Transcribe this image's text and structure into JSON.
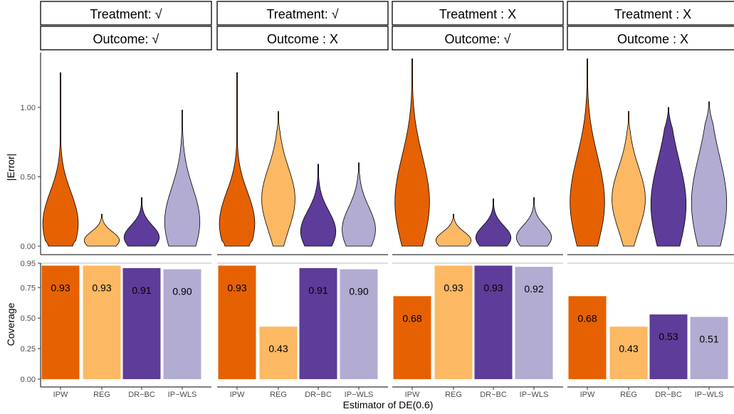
{
  "chart_data": {
    "type": "violin+bar",
    "xlabel": "Estimator of DE(0.6)",
    "categories": [
      "IPW",
      "REG",
      "DR−BC",
      "IP−WLS"
    ],
    "colors": [
      "#e66101",
      "#fdb863",
      "#5e3c99",
      "#b2abd2"
    ],
    "panels": [
      {
        "treatment": "Treatment: √",
        "outcome": "Outcome: √",
        "coverage": [
          0.93,
          0.93,
          0.91,
          0.9
        ],
        "coverage_labels": [
          "0.93",
          "0.93",
          "0.91",
          "0.90"
        ],
        "error_max": [
          1.25,
          0.23,
          0.35,
          0.98
        ]
      },
      {
        "treatment": "Treatment: √",
        "outcome": "Outcome : X",
        "coverage": [
          0.93,
          0.43,
          0.91,
          0.9
        ],
        "coverage_labels": [
          "0.93",
          "0.43",
          "0.91",
          "0.90"
        ],
        "error_max": [
          1.25,
          0.97,
          0.59,
          0.6
        ]
      },
      {
        "treatment": "Treatment : X",
        "outcome": "Outcome: √",
        "coverage": [
          0.68,
          0.93,
          0.93,
          0.92
        ],
        "coverage_labels": [
          "0.68",
          "0.93",
          "0.93",
          "0.92"
        ],
        "error_max": [
          1.35,
          0.23,
          0.34,
          0.35
        ]
      },
      {
        "treatment": "Treatment : X",
        "outcome": "Outcome : X",
        "coverage": [
          0.68,
          0.43,
          0.53,
          0.51
        ],
        "coverage_labels": [
          "0.68",
          "0.43",
          "0.53",
          "0.51"
        ],
        "error_max": [
          1.35,
          0.97,
          1.0,
          1.04
        ]
      }
    ],
    "top": {
      "ylabel": "|Error|",
      "yticks": [
        "0.00",
        "0.50",
        "1.00"
      ],
      "ylim": [
        0,
        1.4
      ]
    },
    "bottom": {
      "ylabel": "Coverage",
      "yticks": [
        "0.00",
        "0.25",
        "0.50",
        "0.75",
        "0.95"
      ],
      "ylim": [
        0,
        0.95
      ],
      "reference_line": 0.95
    }
  }
}
